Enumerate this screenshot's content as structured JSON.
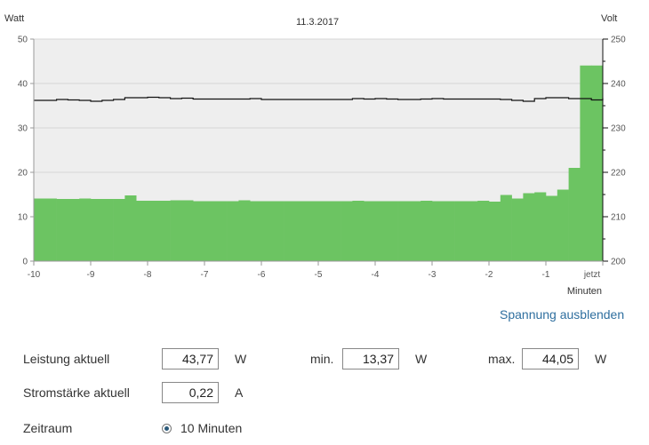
{
  "chart_data": {
    "type": "area",
    "title": "11.3.2017",
    "left_axis_label": "Watt",
    "right_axis_label": "Volt",
    "xlabel": "Minuten",
    "left_ylim": [
      0,
      50
    ],
    "right_ylim": [
      200,
      250
    ],
    "xlim": [
      -10,
      0
    ],
    "left_ticks": [
      "0",
      "10",
      "20",
      "30",
      "40",
      "50"
    ],
    "right_ticks": [
      "200",
      "210",
      "220",
      "230",
      "240",
      "250"
    ],
    "x_ticks": [
      "-10",
      "-9",
      "-8",
      "-7",
      "-6",
      "-5",
      "-4",
      "-3",
      "-2",
      "-1",
      "jetzt"
    ],
    "grid": true,
    "series": [
      {
        "name": "Watt",
        "color": "#6cc462",
        "step": 0.2,
        "x": [
          -10.0,
          -9.8,
          -9.6,
          -9.4,
          -9.2,
          -9.0,
          -8.8,
          -8.6,
          -8.4,
          -8.2,
          -8.0,
          -7.8,
          -7.6,
          -7.4,
          -7.2,
          -7.0,
          -6.8,
          -6.6,
          -6.4,
          -6.2,
          -6.0,
          -5.8,
          -5.6,
          -5.4,
          -5.2,
          -5.0,
          -4.8,
          -4.6,
          -4.4,
          -4.2,
          -4.0,
          -3.8,
          -3.6,
          -3.4,
          -3.2,
          -3.0,
          -2.8,
          -2.6,
          -2.4,
          -2.2,
          -2.0,
          -1.8,
          -1.6,
          -1.4,
          -1.2,
          -1.0,
          -0.8,
          -0.6,
          -0.4,
          -0.2
        ],
        "values": [
          14.1,
          14.1,
          14.0,
          14.0,
          14.1,
          14.0,
          14.0,
          14.0,
          14.8,
          13.6,
          13.6,
          13.6,
          13.7,
          13.7,
          13.5,
          13.5,
          13.5,
          13.5,
          13.7,
          13.5,
          13.5,
          13.5,
          13.5,
          13.5,
          13.5,
          13.5,
          13.5,
          13.5,
          13.6,
          13.5,
          13.5,
          13.5,
          13.5,
          13.5,
          13.6,
          13.5,
          13.5,
          13.5,
          13.5,
          13.6,
          13.4,
          14.9,
          14.1,
          15.3,
          15.5,
          14.7,
          16.1,
          21.0,
          44.05,
          44.05
        ]
      },
      {
        "name": "Volt",
        "color": "#111111",
        "x": [
          -10.0,
          -9.8,
          -9.6,
          -9.4,
          -9.2,
          -9.0,
          -8.8,
          -8.6,
          -8.4,
          -8.2,
          -8.0,
          -7.8,
          -7.6,
          -7.4,
          -7.2,
          -7.0,
          -6.8,
          -6.6,
          -6.4,
          -6.2,
          -6.0,
          -5.8,
          -5.6,
          -5.4,
          -5.2,
          -5.0,
          -4.8,
          -4.6,
          -4.4,
          -4.2,
          -4.0,
          -3.8,
          -3.6,
          -3.4,
          -3.2,
          -3.0,
          -2.8,
          -2.6,
          -2.4,
          -2.2,
          -2.0,
          -1.8,
          -1.6,
          -1.4,
          -1.2,
          -1.0,
          -0.8,
          -0.6,
          -0.4,
          -0.2,
          0.0
        ],
        "values": [
          236.2,
          236.2,
          236.4,
          236.3,
          236.2,
          236.0,
          236.2,
          236.4,
          236.8,
          236.8,
          236.9,
          236.8,
          236.6,
          236.7,
          236.5,
          236.5,
          236.5,
          236.5,
          236.5,
          236.6,
          236.4,
          236.4,
          236.4,
          236.4,
          236.4,
          236.4,
          236.4,
          236.4,
          236.6,
          236.5,
          236.6,
          236.5,
          236.4,
          236.4,
          236.5,
          236.6,
          236.5,
          236.5,
          236.5,
          236.5,
          236.5,
          236.4,
          236.2,
          236.0,
          236.6,
          236.8,
          236.8,
          236.6,
          236.6,
          236.3,
          236.7
        ]
      }
    ]
  },
  "controls": {
    "toggle_voltage": "Spannung ausblenden",
    "power_label": "Leistung aktuell",
    "power_value": "43,77",
    "power_unit": "W",
    "min_label": "min.",
    "min_value": "13,37",
    "min_unit": "W",
    "max_label": "max.",
    "max_value": "44,05",
    "max_unit": "W",
    "current_label": "Stromstärke aktuell",
    "current_value": "0,22",
    "current_unit": "A",
    "range_label": "Zeitraum",
    "range_option": "10 Minuten"
  }
}
